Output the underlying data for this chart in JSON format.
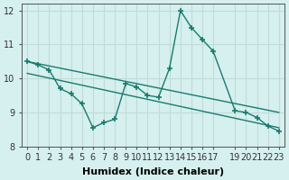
{
  "xlabel": "Humidex (Indice chaleur)",
  "ylabel": "",
  "background_color": "#d5f0ee",
  "grid_color": "#c0dbd8",
  "line_color": "#1a7a6e",
  "xlim": [
    -0.5,
    23.5
  ],
  "ylim": [
    8,
    12.2
  ],
  "yticks": [
    8,
    9,
    10,
    11,
    12
  ],
  "xticks": [
    0,
    1,
    2,
    3,
    4,
    5,
    6,
    7,
    8,
    9,
    10,
    11,
    12,
    13,
    14,
    15,
    16,
    17,
    19,
    20,
    21,
    22,
    23
  ],
  "xtick_labels": [
    "0",
    "1",
    "2",
    "3",
    "4",
    "5",
    "6",
    "7",
    "8",
    "9",
    "10",
    "11",
    "12",
    "13",
    "14",
    "15",
    "16",
    "17",
    "19",
    "20",
    "21",
    "22",
    "23"
  ],
  "line1_x": [
    0,
    1,
    2,
    3,
    4,
    5,
    6,
    7,
    8,
    9,
    10,
    11,
    12,
    13,
    14,
    15,
    16,
    17,
    19,
    20,
    21,
    22,
    23
  ],
  "line1_y": [
    10.5,
    10.4,
    10.25,
    9.7,
    9.55,
    9.25,
    8.55,
    8.7,
    8.8,
    9.85,
    9.75,
    9.5,
    9.45,
    10.3,
    12.0,
    11.5,
    11.15,
    10.8,
    9.05,
    9.0,
    8.85,
    8.6,
    8.45
  ],
  "line2_x": [
    0,
    23
  ],
  "line2_y": [
    10.5,
    9.0
  ],
  "line3_x": [
    0,
    23
  ],
  "line3_y": [
    10.15,
    8.55
  ],
  "tick_fontsize": 7,
  "label_fontsize": 8
}
